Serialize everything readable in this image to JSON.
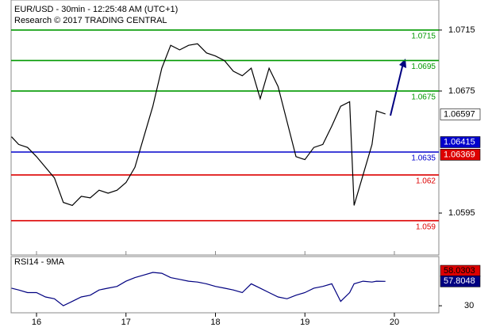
{
  "chart_data": [
    {
      "type": "line",
      "title": "EUR/USD - 30min - 12:25:48 AM (UTC+1)",
      "subtitle": "Research © 2017 TRADING CENTRAL",
      "x": [
        15.72,
        15.8,
        15.9,
        16.0,
        16.1,
        16.2,
        16.3,
        16.4,
        16.5,
        16.6,
        16.7,
        16.8,
        16.9,
        17.0,
        17.1,
        17.2,
        17.3,
        17.4,
        17.5,
        17.6,
        17.7,
        17.8,
        17.9,
        18.0,
        18.1,
        18.2,
        18.3,
        18.4,
        18.5,
        18.6,
        18.7,
        18.8,
        18.9,
        19.0,
        19.1,
        19.2,
        19.3,
        19.4,
        19.5,
        19.55,
        19.65,
        19.75,
        19.8,
        19.9
      ],
      "series": [
        {
          "name": "EUR/USD",
          "color": "#000000",
          "values": [
            1.0645,
            1.064,
            1.0638,
            1.0632,
            1.0625,
            1.0618,
            1.0602,
            1.06,
            1.0606,
            1.0605,
            1.061,
            1.0608,
            1.061,
            1.0615,
            1.0625,
            1.0645,
            1.0665,
            1.069,
            1.0705,
            1.0702,
            1.0705,
            1.0706,
            1.07,
            1.0698,
            1.0695,
            1.0688,
            1.0685,
            1.069,
            1.067,
            1.069,
            1.0678,
            1.0655,
            1.0632,
            1.063,
            1.0638,
            1.064,
            1.0652,
            1.0665,
            1.0668,
            1.06,
            1.062,
            1.064,
            1.0662,
            1.066
          ]
        }
      ],
      "levels": [
        {
          "value": 1.0715,
          "color": "#009900"
        },
        {
          "value": 1.0695,
          "color": "#009900"
        },
        {
          "value": 1.0675,
          "color": "#009900"
        },
        {
          "value": 1.0635,
          "color": "#0000cc"
        },
        {
          "value": 1.062,
          "color": "#dd0000"
        },
        {
          "value": 1.059,
          "color": "#dd0000"
        }
      ],
      "price_tags": [
        {
          "value": 1.06597,
          "color": "#ffffff",
          "text_color": "#000000"
        },
        {
          "value": 1.06415,
          "color": "#0000cc",
          "text_color": "#ffffff"
        },
        {
          "value": 1.06369,
          "color": "#dd0000",
          "text_color": "#ffffff"
        }
      ],
      "xlim": [
        15.716,
        20.497
      ],
      "xticks": [
        16,
        17,
        18,
        19,
        20
      ],
      "ylim": [
        1.05675,
        1.07347
      ],
      "yticks": [
        1.0715,
        1.0675,
        1.0595
      ]
    },
    {
      "type": "line",
      "title": "RSI14 - 9MA",
      "series": [
        {
          "name": "RSI14",
          "color": "#000080",
          "values": [
            50,
            48,
            45,
            45,
            40,
            38,
            30,
            35,
            40,
            42,
            48,
            50,
            52,
            58,
            62,
            65,
            68,
            67,
            62,
            60,
            58,
            57,
            55,
            52,
            50,
            48,
            45,
            55,
            50,
            45,
            40,
            38,
            42,
            45,
            50,
            52,
            55,
            35,
            45,
            55,
            58,
            57,
            58,
            57.8
          ]
        }
      ],
      "price_tags": [
        {
          "value": 58.0303,
          "color": "#dd0000",
          "text_color": "#000000"
        },
        {
          "value": 57.8048,
          "color": "#000080",
          "text_color": "#ffffff"
        }
      ],
      "ylim": [
        22,
        86
      ],
      "yticks": [
        30
      ]
    }
  ]
}
